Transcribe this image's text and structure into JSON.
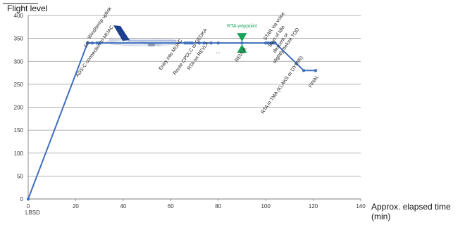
{
  "chart_data": {
    "type": "line",
    "ylabel": "Flight level",
    "xlabel_line1": "Approx. elapsed time",
    "xlabel_line2": "(min)",
    "xlim": [
      0,
      140
    ],
    "ylim": [
      0,
      400
    ],
    "xticks": [
      0,
      20,
      40,
      60,
      80,
      100,
      120,
      140
    ],
    "yticks": [
      0,
      50,
      100,
      150,
      200,
      250,
      300,
      350,
      400
    ],
    "grid": true,
    "series_color": "#3f6fbd",
    "rta_color": "#19a35a",
    "series": [
      {
        "x": [
          0,
          25,
          27,
          29,
          30,
          66,
          67,
          68,
          69,
          72,
          74,
          77,
          80,
          90,
          100,
          101,
          102,
          103,
          104,
          116,
          121
        ],
        "y": [
          0,
          340,
          340,
          340,
          340,
          340,
          340,
          340,
          340,
          340,
          340,
          340,
          340,
          340,
          340,
          340,
          340,
          340,
          340,
          280,
          280
        ]
      }
    ],
    "annotations": [
      {
        "text": "Wind/temp uplink",
        "x": 26,
        "y": 348,
        "rotate": -55
      },
      {
        "text": "T/C",
        "x": 24.5,
        "y": 328,
        "rotate": -55
      },
      {
        "text": "ADS-C connection to MUAC",
        "x": 21,
        "y": 265,
        "rotate": -55
      },
      {
        "text": "Entry into MUAC",
        "x": 56,
        "y": 280,
        "rotate": -55
      },
      {
        "text": "Route CPDLC to GEDKA",
        "x": 62,
        "y": 270,
        "rotate": -55
      },
      {
        "text": "RTA on REVLA",
        "x": 68,
        "y": 280,
        "rotate": -55
      },
      {
        "text": "...",
        "x": 79,
        "y": 318,
        "rotate": 0
      },
      {
        "text": "REVLA",
        "x": 88,
        "y": 298,
        "rotate": -55
      },
      {
        "text": "STAR via voice",
        "x": 100,
        "y": 345,
        "rotate": -55
      },
      {
        "text": "Start of Idle",
        "x": 102,
        "y": 330,
        "rotate": -55
      },
      {
        "text": "descent or",
        "x": 104,
        "y": 318,
        "rotate": -55
      },
      {
        "text": "slightly before TOD",
        "x": 104,
        "y": 295,
        "rotate": -55
      },
      {
        "text": "RTA in TMA (KLAKS or DYMIR)",
        "x": 99,
        "y": 185,
        "rotate": -55
      },
      {
        "text": "FINAL",
        "x": 119,
        "y": 242,
        "rotate": -55
      }
    ],
    "rta_label": "RTA waypoint",
    "rta_x": 90,
    "rta_y": 340,
    "origin_label": "LBSD"
  }
}
